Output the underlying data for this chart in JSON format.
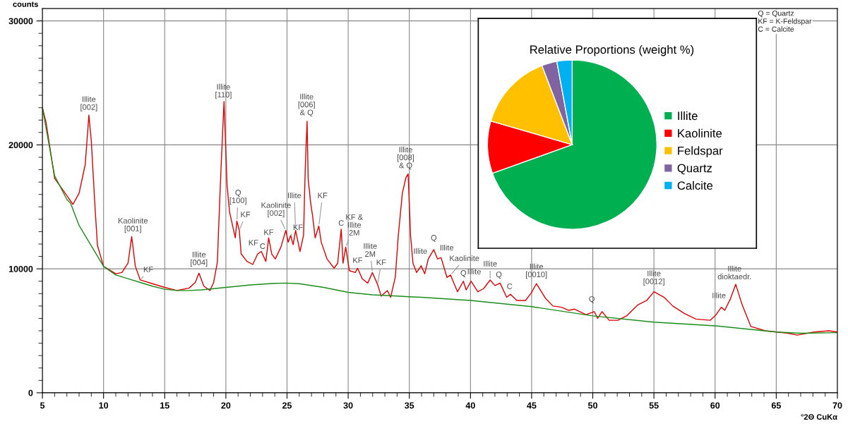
{
  "chart_data": [
    {
      "type": "line",
      "xlabel": "°2Θ CuKα",
      "ylabel": "counts",
      "xlim": [
        5,
        70
      ],
      "ylim": [
        0,
        31000
      ],
      "xticks": [
        5,
        {
          "value": 6,
          "label": null
        },
        {
          "value": 7,
          "label": null
        },
        {
          "value": 8,
          "label": null
        },
        {
          "value": 9,
          "label": null
        },
        10,
        {
          "value": 11,
          "label": null
        },
        {
          "value": 12,
          "label": null
        },
        {
          "value": 13,
          "label": null
        },
        {
          "value": 14,
          "label": null
        },
        15,
        {
          "value": 16,
          "label": null
        },
        {
          "value": 17,
          "label": null
        },
        {
          "value": 18,
          "label": null
        },
        {
          "value": 19,
          "label": null
        },
        20,
        {
          "value": 21,
          "label": null
        },
        {
          "value": 22,
          "label": null
        },
        {
          "value": 23,
          "label": null
        },
        {
          "value": 24,
          "label": null
        },
        25,
        {
          "value": 26,
          "label": null
        },
        {
          "value": 27,
          "label": null
        },
        {
          "value": 28,
          "label": null
        },
        {
          "value": 29,
          "label": null
        },
        30,
        {
          "value": 31,
          "label": null
        },
        {
          "value": 32,
          "label": null
        },
        {
          "value": 33,
          "label": null
        },
        {
          "value": 34,
          "label": null
        },
        35,
        {
          "value": 36,
          "label": null
        },
        {
          "value": 37,
          "label": null
        },
        {
          "value": 38,
          "label": null
        },
        {
          "value": 39,
          "label": null
        },
        40,
        {
          "value": 41,
          "label": null
        },
        {
          "value": 42,
          "label": null
        },
        {
          "value": 43,
          "label": null
        },
        {
          "value": 44,
          "label": null
        },
        45,
        {
          "value": 46,
          "label": null
        },
        {
          "value": 47,
          "label": null
        },
        {
          "value": 48,
          "label": null
        },
        {
          "value": 49,
          "label": null
        },
        50,
        {
          "value": 51,
          "label": null
        },
        {
          "value": 52,
          "label": null
        },
        {
          "value": 53,
          "label": null
        },
        {
          "value": 54,
          "label": null
        },
        55,
        {
          "value": 56,
          "label": null
        },
        {
          "value": 57,
          "label": null
        },
        {
          "value": 58,
          "label": null
        },
        {
          "value": 59,
          "label": null
        },
        60,
        {
          "value": 61,
          "label": null
        },
        {
          "value": 62,
          "label": null
        },
        {
          "value": 63,
          "label": null
        },
        {
          "value": 64,
          "label": null
        },
        65,
        {
          "value": 66,
          "label": null
        },
        {
          "value": 67,
          "label": null
        },
        {
          "value": 68,
          "label": null
        },
        {
          "value": 69,
          "label": null
        },
        70
      ],
      "yticks": [
        0,
        {
          "value": 1000,
          "label": null
        },
        {
          "value": 2000,
          "label": null
        },
        {
          "value": 3000,
          "label": null
        },
        {
          "value": 4000,
          "label": null
        },
        {
          "value": 5000,
          "label": null
        },
        {
          "value": 6000,
          "label": null
        },
        {
          "value": 7000,
          "label": null
        },
        {
          "value": 8000,
          "label": null
        },
        {
          "value": 9000,
          "label": null
        },
        10000,
        {
          "value": 11000,
          "label": null
        },
        {
          "value": 12000,
          "label": null
        },
        {
          "value": 13000,
          "label": null
        },
        {
          "value": 14000,
          "label": null
        },
        {
          "value": 15000,
          "label": null
        },
        {
          "value": 16000,
          "label": null
        },
        {
          "value": 17000,
          "label": null
        },
        {
          "value": 18000,
          "label": null
        },
        {
          "value": 19000,
          "label": null
        },
        20000,
        {
          "value": 21000,
          "label": null
        },
        {
          "value": 22000,
          "label": null
        },
        {
          "value": 23000,
          "label": null
        },
        {
          "value": 24000,
          "label": null
        },
        {
          "value": 25000,
          "label": null
        },
        {
          "value": 26000,
          "label": null
        },
        {
          "value": 27000,
          "label": null
        },
        {
          "value": 28000,
          "label": null
        },
        {
          "value": 29000,
          "label": null
        },
        30000
      ],
      "grid": true,
      "legend": false,
      "marker": "none",
      "line_style": "solid",
      "series": [
        {
          "color": "#e00000",
          "x": [
            5.0,
            5.3,
            6.0,
            7.0,
            7.5,
            8.0,
            8.5,
            8.8,
            9.0,
            9.3,
            9.5,
            10.0,
            11.0,
            11.5,
            12.0,
            12.3,
            12.6,
            13.0,
            14.0,
            15.0,
            16.0,
            17.0,
            17.5,
            17.8,
            18.2,
            18.7,
            19.0,
            19.3,
            19.6,
            19.85,
            20.1,
            20.3,
            20.77,
            20.9,
            21.1,
            21.25,
            21.73,
            22.2,
            22.6,
            22.9,
            23.27,
            23.5,
            23.75,
            24.04,
            24.5,
            24.9,
            25.1,
            25.3,
            25.5,
            25.7,
            26.06,
            26.35,
            26.5,
            26.64,
            26.73,
            26.93,
            27.1,
            27.3,
            27.6,
            27.8,
            28.27,
            28.85,
            29.14,
            29.43,
            29.58,
            29.8,
            30.1,
            30.58,
            30.77,
            31.15,
            31.6,
            31.98,
            32.4,
            32.7,
            33.2,
            33.47,
            33.85,
            34.1,
            34.43,
            34.72,
            34.9,
            35.1,
            35.3,
            35.6,
            35.97,
            36.26,
            36.55,
            37.0,
            37.3,
            37.6,
            38.08,
            38.37,
            38.94,
            39.42,
            39.65,
            40.05,
            40.6,
            41.07,
            41.61,
            42.0,
            42.42,
            42.96,
            43.27,
            43.79,
            44.5,
            44.97,
            45.39,
            46.15,
            46.74,
            47.45,
            48.04,
            48.51,
            49.45,
            50.12,
            50.4,
            50.75,
            51.34,
            52.05,
            52.76,
            53.7,
            54.41,
            55.0,
            55.83,
            56.54,
            57.48,
            58.43,
            59.61,
            60.08,
            60.51,
            60.79,
            61.26,
            61.69,
            62.21,
            62.92,
            64.1,
            65.04,
            65.99,
            66.7,
            68.11,
            69.29,
            70.0
          ],
          "values": [
            23000,
            21800,
            17300,
            15900,
            15200,
            16100,
            18400,
            22400,
            20300,
            15000,
            11900,
            10200,
            9600,
            9700,
            10450,
            12600,
            10200,
            9100,
            8800,
            8500,
            8250,
            8450,
            8900,
            9650,
            8600,
            8250,
            8900,
            10500,
            18000,
            23500,
            16700,
            14600,
            12500,
            13850,
            13100,
            11200,
            10600,
            10350,
            11200,
            11400,
            10600,
            12500,
            11200,
            10800,
            11750,
            13100,
            12150,
            12700,
            11950,
            13100,
            11400,
            12700,
            18400,
            21900,
            17250,
            15350,
            14200,
            12500,
            13450,
            12150,
            10800,
            10050,
            10450,
            13200,
            10450,
            11750,
            9850,
            9700,
            10050,
            9200,
            8850,
            9700,
            8750,
            7800,
            8250,
            7700,
            9300,
            12700,
            16100,
            17350,
            17650,
            12700,
            10450,
            9700,
            10250,
            9600,
            10800,
            11550,
            10800,
            10900,
            9300,
            9500,
            8150,
            9000,
            8300,
            9000,
            8150,
            8400,
            9100,
            8650,
            8850,
            7700,
            7950,
            7450,
            7450,
            8050,
            8800,
            7600,
            7000,
            6900,
            6650,
            6750,
            6300,
            6550,
            6000,
            6550,
            5850,
            5850,
            6200,
            7100,
            7450,
            8150,
            7700,
            7000,
            6400,
            5950,
            5850,
            6300,
            6900,
            6650,
            7600,
            8750,
            7100,
            5350,
            5000,
            4900,
            4800,
            4650,
            4900,
            5000,
            4900
          ]
        },
        {
          "color": "#1a8c1a",
          "x": [
            5.0,
            6.0,
            7.0,
            7.3,
            8.0,
            9.0,
            10.0,
            11.0,
            12.0,
            13.0,
            14.0,
            15.0,
            16.0,
            17.0,
            18.0,
            19.0,
            20.0,
            22.0,
            24.0,
            25.0,
            26.0,
            28.0,
            30.0,
            32.0,
            34.0,
            35.0,
            36.0,
            40.0,
            45.0,
            50.0,
            55.0,
            60.0,
            65.0,
            67.0,
            70.0
          ],
          "values": [
            23000,
            17500,
            15600,
            15300,
            13500,
            11850,
            10200,
            9500,
            9200,
            8900,
            8600,
            8350,
            8250,
            8250,
            8300,
            8400,
            8500,
            8700,
            8830,
            8850,
            8800,
            8500,
            8100,
            7900,
            7800,
            7750,
            7700,
            7450,
            6950,
            6200,
            5700,
            5400,
            4900,
            4800,
            4850
          ]
        }
      ],
      "annotations": [
        {
          "text": "Illite\n[002]",
          "x": 8.8,
          "y": 22400
        },
        {
          "text": "Illite\n[110]",
          "x": 19.85,
          "y": 23500
        },
        {
          "text": "Illite\n[006]\n& Q",
          "x": 26.64,
          "y": 21900
        },
        {
          "text": "Illite\n[008]\n& Q",
          "x": 34.9,
          "y": 17650
        },
        {
          "text": "Kaolinite\n[001]",
          "x": 12.3,
          "y": 12600
        },
        {
          "text": "KF",
          "x": 13.0,
          "y": 9100
        },
        {
          "text": "Illite\n[004]",
          "x": 17.8,
          "y": 9650
        },
        {
          "text": "Q\n[100]",
          "x": 20.9,
          "y": 13850
        },
        {
          "text": "KF",
          "x": 21.1,
          "y": 13100
        },
        {
          "text": "KF",
          "x": 22.6,
          "y": 11200
        },
        {
          "text": "C",
          "x": 22.9,
          "y": 11400
        },
        {
          "text": "KF",
          "x": 23.5,
          "y": 12500
        },
        {
          "text": "Kaolinite\n[002]",
          "x": 24.9,
          "y": 13100
        },
        {
          "text": "Illite",
          "x": 25.7,
          "y": 13100
        },
        {
          "text": "KF",
          "x": 25.3,
          "y": 12700
        },
        {
          "text": "KF",
          "x": 27.6,
          "y": 13450
        },
        {
          "text": "C",
          "x": 29.43,
          "y": 13200
        },
        {
          "text": "KF &\nIllite\n2M",
          "x": 29.8,
          "y": 11750
        },
        {
          "text": "Illite\n2M",
          "x": 31.98,
          "y": 9700
        },
        {
          "text": "KF",
          "x": 30.77,
          "y": 10050
        },
        {
          "text": "KF",
          "x": 32.4,
          "y": 8750
        },
        {
          "text": "Illite",
          "x": 35.97,
          "y": 10250
        },
        {
          "text": "Q",
          "x": 37.0,
          "y": 11550
        },
        {
          "text": "Illite",
          "x": 37.6,
          "y": 10900
        },
        {
          "text": "Kaolinite",
          "x": 38.37,
          "y": 9500
        },
        {
          "text": "Q",
          "x": 39.42,
          "y": 9000
        },
        {
          "text": "Illite",
          "x": 40.05,
          "y": 9000
        },
        {
          "text": "Illite",
          "x": 41.61,
          "y": 9100
        },
        {
          "text": "Q",
          "x": 42.42,
          "y": 8850
        },
        {
          "text": "C",
          "x": 43.27,
          "y": 7950
        },
        {
          "text": "Illite\n[0010]",
          "x": 45.39,
          "y": 8800
        },
        {
          "text": "Q",
          "x": 50.12,
          "y": 6550
        },
        {
          "text": "Illite\n[0012]",
          "x": 55.0,
          "y": 8150
        },
        {
          "text": "Illite",
          "x": 60.51,
          "y": 6900
        },
        {
          "text": "Illite\ndioktaedr.",
          "x": 61.69,
          "y": 8750
        },
        "Q = Quartz\nKF = K-Feldspar\nC = Calcite"
      ]
    },
    {
      "type": "pie",
      "title": "Relative Proportions (weight %)",
      "categories": [
        "Illite",
        "Kaolinite",
        "Feldspar",
        "Quartz",
        "Calcite"
      ],
      "values": [
        69.5,
        10,
        14.7,
        2.9,
        2.9
      ],
      "colors": [
        "#00b050",
        "#ff0000",
        "#ffc000",
        "#8064a2",
        "#00b0f0"
      ],
      "legend": "right"
    }
  ]
}
